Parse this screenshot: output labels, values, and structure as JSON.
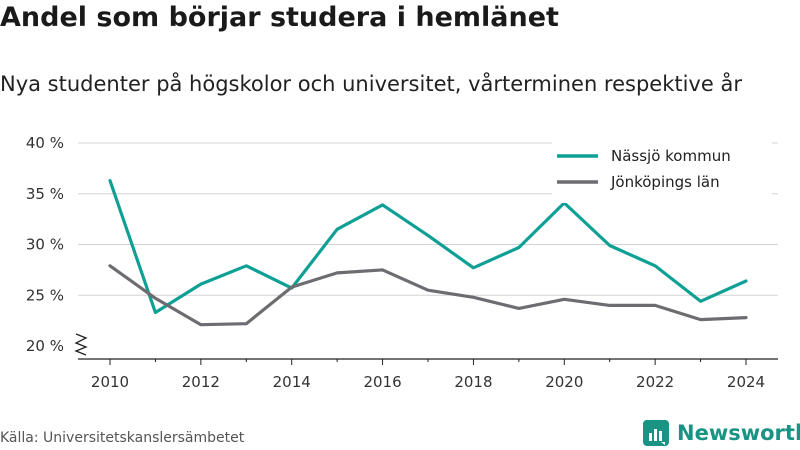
{
  "title": "Andel som börjar studera i hemlänet",
  "subtitle": "Nya studenter på högskolor och universitet, vårterminen respektive år",
  "source": "Källa: Universitetskanslersämbetet",
  "brand": "Newsworthy",
  "colors": {
    "nassjo": "#0fa095",
    "lan": "#6d6c70",
    "brand": "#199384"
  },
  "chart_data": {
    "type": "line",
    "x": [
      2010,
      2011,
      2012,
      2013,
      2014,
      2015,
      2016,
      2017,
      2018,
      2019,
      2020,
      2021,
      2022,
      2023,
      2024
    ],
    "xticks": [
      2010,
      2012,
      2014,
      2016,
      2018,
      2020,
      2022,
      2024
    ],
    "xtick_labels": [
      "2010",
      "2012",
      "2014",
      "2016",
      "2018",
      "2020",
      "2022",
      "2024"
    ],
    "yticks": [
      20,
      25,
      30,
      35,
      40
    ],
    "ytick_labels": [
      "20 %",
      "25 %",
      "30 %",
      "35 %",
      "40 %"
    ],
    "ylim": [
      20,
      40
    ],
    "y_axis_break": true,
    "grid": true,
    "legend_position": "top-right",
    "series": [
      {
        "name": "Nässjö kommun",
        "color": "#0fa095",
        "values": [
          36.3,
          23.3,
          26.1,
          27.9,
          25.7,
          31.5,
          33.9,
          30.9,
          27.7,
          29.7,
          34.1,
          29.9,
          27.9,
          24.4,
          26.4
        ]
      },
      {
        "name": "Jönköpings län",
        "color": "#6d6c70",
        "values": [
          27.9,
          24.7,
          22.1,
          22.2,
          25.8,
          27.2,
          27.5,
          25.5,
          24.8,
          23.7,
          24.6,
          24.0,
          24.0,
          22.6,
          22.8
        ]
      }
    ]
  }
}
